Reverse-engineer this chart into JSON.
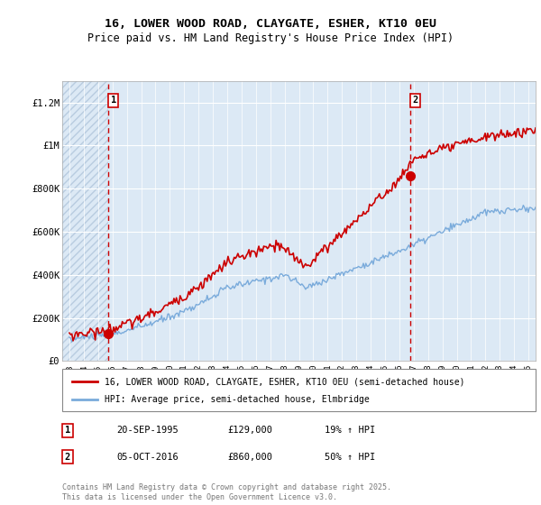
{
  "title_line1": "16, LOWER WOOD ROAD, CLAYGATE, ESHER, KT10 0EU",
  "title_line2": "Price paid vs. HM Land Registry's House Price Index (HPI)",
  "ylabel_ticks": [
    "£0",
    "£200K",
    "£400K",
    "£600K",
    "£800K",
    "£1M",
    "£1.2M"
  ],
  "ytick_vals": [
    0,
    200000,
    400000,
    600000,
    800000,
    1000000,
    1200000
  ],
  "ylim": [
    0,
    1300000
  ],
  "xlim_start": 1992.5,
  "xlim_end": 2025.5,
  "background_color": "#ffffff",
  "plot_bg_color": "#dce9f5",
  "hatch_color": "#b8cce0",
  "grid_color": "#ffffff",
  "red_line_color": "#cc0000",
  "blue_line_color": "#7aabdb",
  "marker1_x": 1995.72,
  "marker1_y": 129000,
  "marker2_x": 2016.76,
  "marker2_y": 860000,
  "vline1_x": 1995.72,
  "vline2_x": 2016.76,
  "legend_label_red": "16, LOWER WOOD ROAD, CLAYGATE, ESHER, KT10 0EU (semi-detached house)",
  "legend_label_blue": "HPI: Average price, semi-detached house, Elmbridge",
  "table_row1": [
    "1",
    "20-SEP-1995",
    "£129,000",
    "19% ↑ HPI"
  ],
  "table_row2": [
    "2",
    "05-OCT-2016",
    "£860,000",
    "50% ↑ HPI"
  ],
  "footer": "Contains HM Land Registry data © Crown copyright and database right 2025.\nThis data is licensed under the Open Government Licence v3.0."
}
